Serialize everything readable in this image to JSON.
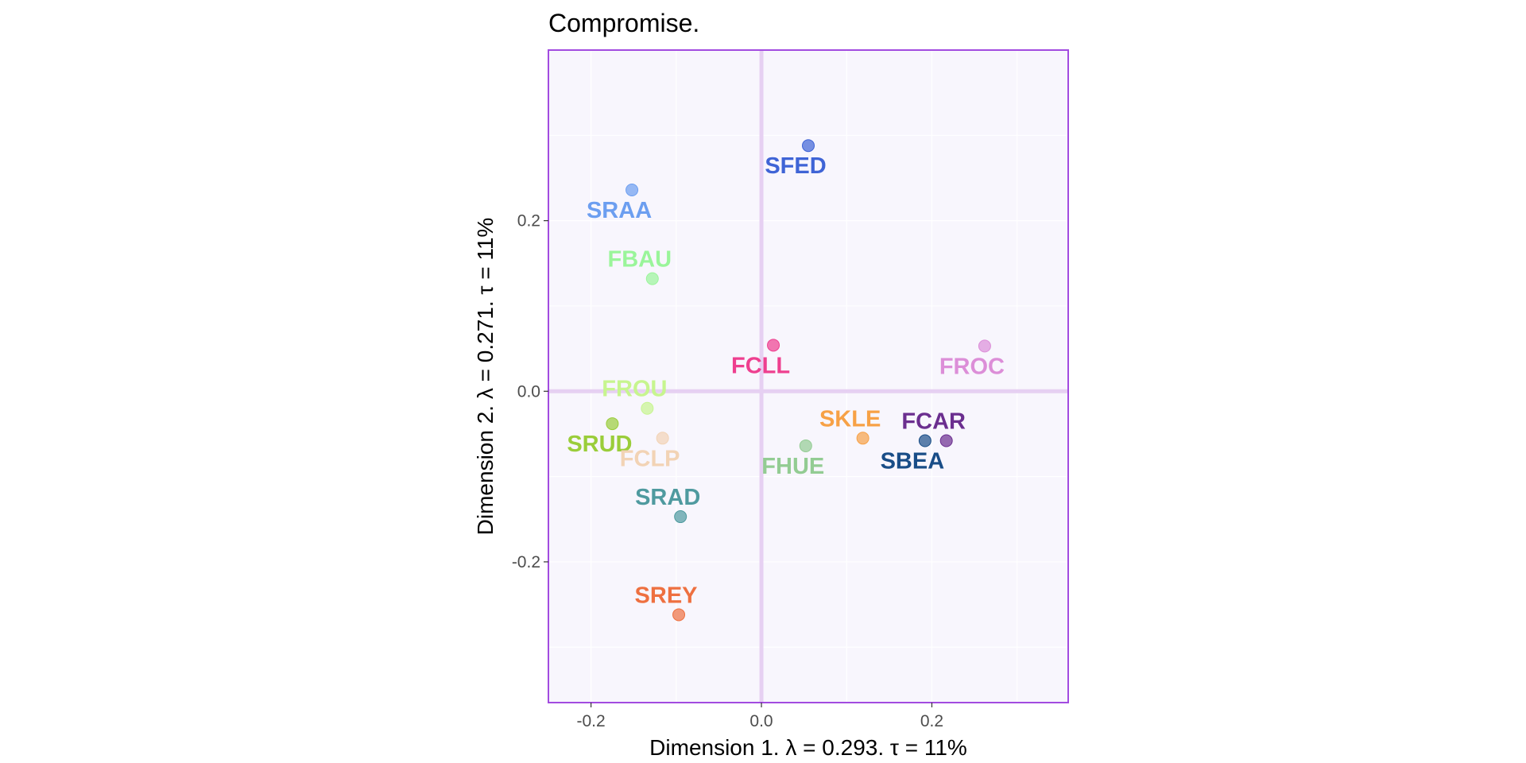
{
  "chart_data": {
    "type": "scatter",
    "title": "Compromise.",
    "xlabel": "Dimension 1.   λ = 0.293.  τ = 11%",
    "ylabel": "Dimension 2.   λ = 0.271.  τ = 11%",
    "xlim": [
      -0.25,
      0.36
    ],
    "ylim": [
      -0.365,
      0.4
    ],
    "x_ticks": [
      {
        "value": -0.2,
        "label": "-0.2"
      },
      {
        "value": 0.0,
        "label": "0.0"
      },
      {
        "value": 0.2,
        "label": "0.2"
      }
    ],
    "y_ticks": [
      {
        "value": -0.2,
        "label": "-0.2"
      },
      {
        "value": 0.0,
        "label": "0.0"
      },
      {
        "value": 0.2,
        "label": "0.2"
      }
    ],
    "grid": true,
    "panel_background": "#f8f6fd",
    "panel_border_color": "#a24be0",
    "origin_line_color": "#e6d0f2",
    "points": [
      {
        "label": "SFED",
        "x": 0.055,
        "y": 0.288,
        "color": "#3f64d6",
        "label_pos": "below"
      },
      {
        "label": "SRAA",
        "x": -0.152,
        "y": 0.236,
        "color": "#6c9ef0",
        "label_pos": "below"
      },
      {
        "label": "FBAU",
        "x": -0.128,
        "y": 0.132,
        "color": "#9af59a",
        "label_pos": "above"
      },
      {
        "label": "FCLL",
        "x": 0.014,
        "y": 0.054,
        "color": "#ee3f8f",
        "label_pos": "below"
      },
      {
        "label": "FROC",
        "x": 0.262,
        "y": 0.053,
        "color": "#dc8ed8",
        "label_pos": "below"
      },
      {
        "label": "FROU",
        "x": -0.134,
        "y": -0.02,
        "color": "#c7f58f",
        "label_pos": "above"
      },
      {
        "label": "SRUD",
        "x": -0.175,
        "y": -0.038,
        "color": "#9acd3a",
        "label_pos": "below"
      },
      {
        "label": "FCLP",
        "x": -0.116,
        "y": -0.055,
        "color": "#f2d3b5",
        "label_pos": "below"
      },
      {
        "label": "FHUE",
        "x": 0.052,
        "y": -0.064,
        "color": "#93cc93",
        "label_pos": "below"
      },
      {
        "label": "SKLE",
        "x": 0.119,
        "y": -0.055,
        "color": "#f7a146",
        "label_pos": "above"
      },
      {
        "label": "SBEA",
        "x": 0.192,
        "y": -0.058,
        "color": "#194d87",
        "label_pos": "below"
      },
      {
        "label": "FCAR",
        "x": 0.217,
        "y": -0.058,
        "color": "#6b2e8f",
        "label_pos": "above"
      },
      {
        "label": "SRAD",
        "x": -0.095,
        "y": -0.147,
        "color": "#4f9a9f",
        "label_pos": "above"
      },
      {
        "label": "SREY",
        "x": -0.097,
        "y": -0.262,
        "color": "#ee7040",
        "label_pos": "above"
      }
    ]
  }
}
